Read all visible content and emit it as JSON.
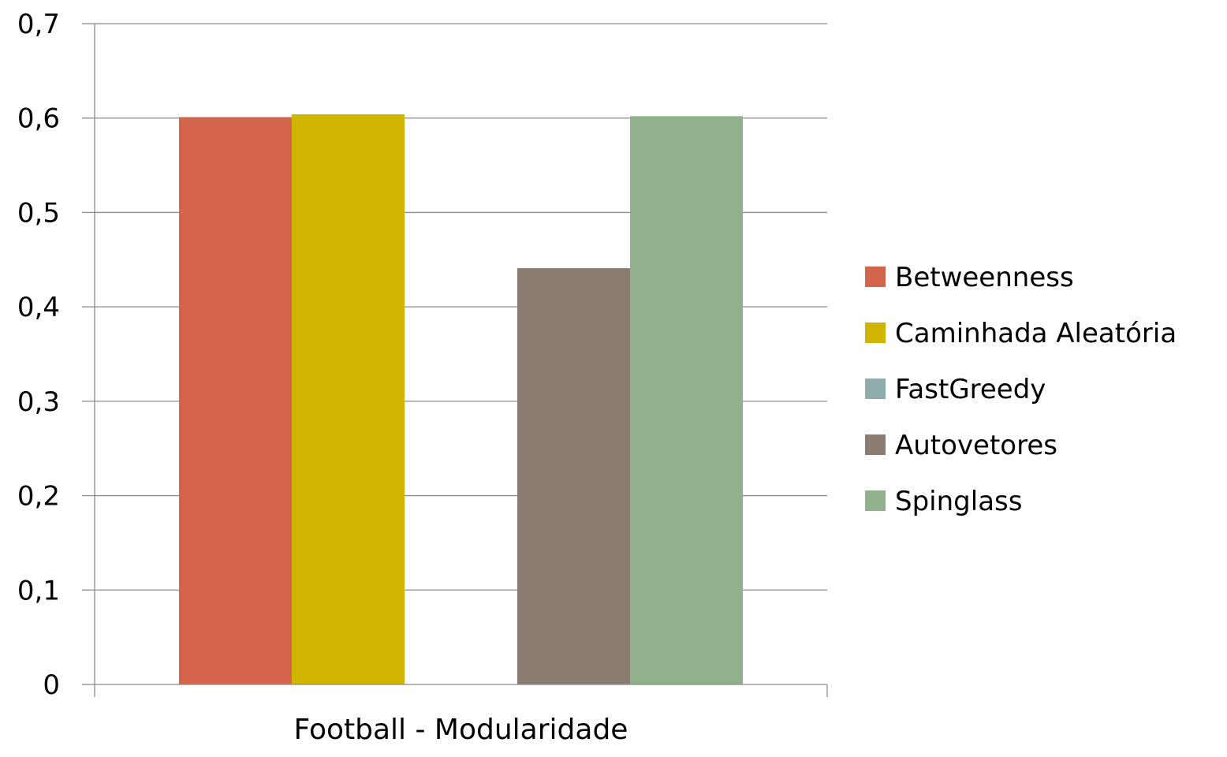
{
  "chart_data": {
    "type": "bar",
    "title": "",
    "xlabel": "",
    "ylabel": "",
    "categories": [
      "Football - Modularidade"
    ],
    "series": [
      {
        "name": "Betweenness",
        "values": [
          0.601
        ],
        "color": "#d2654c"
      },
      {
        "name": "Caminhada Aleatória",
        "values": [
          0.604
        ],
        "color": "#cfb500"
      },
      {
        "name": "FastGreedy",
        "values": [
          0
        ],
        "color": "#8eacab"
      },
      {
        "name": "Autovetores",
        "values": [
          0.441
        ],
        "color": "#8b7c72"
      },
      {
        "name": "Spinglass",
        "values": [
          0.602
        ],
        "color": "#91b08c"
      }
    ],
    "ylim": [
      0,
      0.7
    ],
    "yticks": [
      0,
      0.1,
      0.2,
      0.3,
      0.4,
      0.5,
      0.6,
      0.7
    ],
    "ytick_labels": [
      "0",
      "0,1",
      "0,2",
      "0,3",
      "0,4",
      "0,5",
      "0,6",
      "0,7"
    ],
    "grid": true,
    "legend_position": "right"
  }
}
